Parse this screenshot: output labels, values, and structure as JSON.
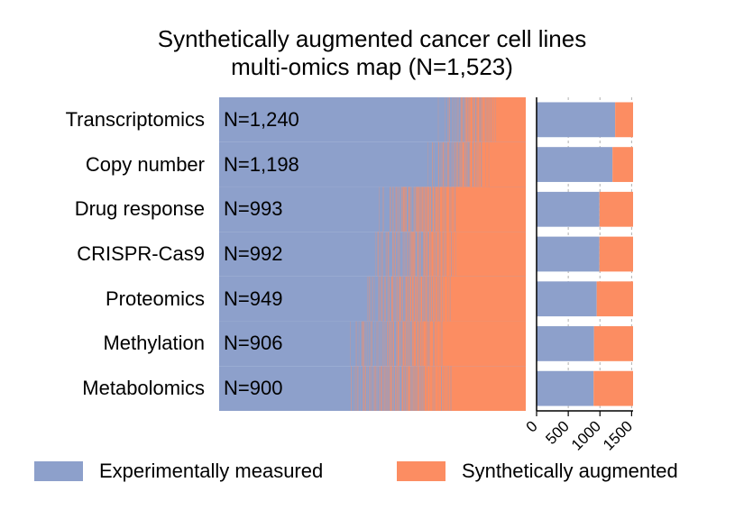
{
  "chart_data": {
    "type": "heatmap",
    "title": [
      "Synthetically augmented cancer cell lines",
      "multi-omics map (N=1,523)"
    ],
    "total_cell_lines": 1523,
    "rows": [
      {
        "omics": "Transcriptomics",
        "n_label": "N=1,240",
        "measured": 1240,
        "augmented": 283
      },
      {
        "omics": "Copy number",
        "n_label": "N=1,198",
        "measured": 1198,
        "augmented": 325
      },
      {
        "omics": "Drug response",
        "n_label": "N=993",
        "measured": 993,
        "augmented": 530
      },
      {
        "omics": "CRISPR-Cas9",
        "n_label": "N=992",
        "measured": 992,
        "augmented": 531
      },
      {
        "omics": "Proteomics",
        "n_label": "N=949",
        "measured": 949,
        "augmented": 574
      },
      {
        "omics": "Methylation",
        "n_label": "N=906",
        "measured": 906,
        "augmented": 617
      },
      {
        "omics": "Metabolomics",
        "n_label": "N=900",
        "measured": 900,
        "augmented": 623
      }
    ],
    "bar_axis": {
      "ticks": [
        "0",
        "500",
        "1000",
        "1500"
      ],
      "tick_values": [
        0,
        500,
        1000,
        1500
      ],
      "xlim": [
        0,
        1523
      ],
      "grid": true
    },
    "legend": {
      "position": "bottom",
      "entries": [
        "Experimentally measured",
        "Synthetically augmented"
      ]
    },
    "colors": {
      "measured": "#8da0cb",
      "augmented": "#fc8d62"
    }
  }
}
